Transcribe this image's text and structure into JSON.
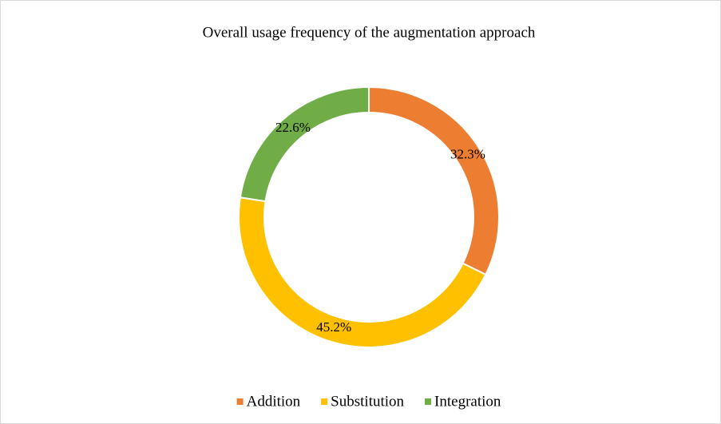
{
  "chart_data": {
    "type": "doughnut",
    "title": "Overall usage frequency of the augmentation approach",
    "categories": [
      "Addition",
      "Substitution",
      "Integration"
    ],
    "values": [
      32.3,
      45.2,
      22.6
    ],
    "value_labels": [
      "32.3%",
      "45.2%",
      "22.6%"
    ],
    "colors": [
      "#ed7d31",
      "#ffc000",
      "#70ad47"
    ],
    "legend": "bottom"
  }
}
